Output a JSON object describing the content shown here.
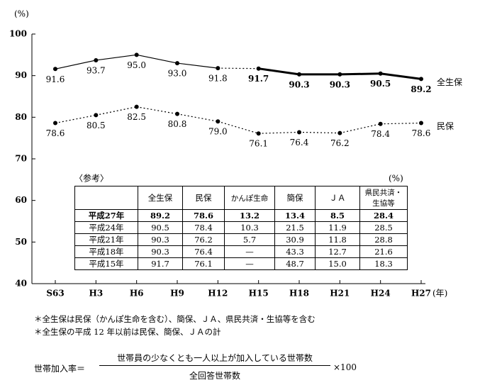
{
  "chart_data": {
    "type": "line",
    "y_unit": "(%)",
    "x_unit": "(年)",
    "categories": [
      "S63",
      "H3",
      "H6",
      "H9",
      "H12",
      "H15",
      "H18",
      "H21",
      "H24",
      "H27"
    ],
    "ylim": [
      40,
      100
    ],
    "yticks": [
      40,
      50,
      60,
      70,
      80,
      90,
      100
    ],
    "color": "#000000",
    "series": [
      {
        "name": "全生保",
        "values": [
          91.6,
          93.7,
          95.0,
          93.0,
          91.8,
          91.7,
          90.3,
          90.3,
          90.5,
          89.2
        ],
        "value_labels": [
          "91.6",
          "93.7",
          "95.0",
          "93.0",
          "91.8",
          "91.7",
          "90.3",
          "90.3",
          "90.5",
          "89.2"
        ],
        "segment_styles": [
          "solid",
          "solid",
          "solid",
          "solid",
          "dotted",
          "thick",
          "thick",
          "thick",
          "thick"
        ]
      },
      {
        "name": "民保",
        "values": [
          78.6,
          80.5,
          82.5,
          80.8,
          79.0,
          76.1,
          76.4,
          76.2,
          78.4,
          78.6
        ],
        "value_labels": [
          "78.6",
          "80.5",
          "82.5",
          "80.8",
          "79.0",
          "76.1",
          "76.4",
          "76.2",
          "78.4",
          "78.6"
        ],
        "segment_styles": [
          "dotted",
          "dotted",
          "dotted",
          "dotted",
          "dotted",
          "dotted",
          "dotted",
          "dotted",
          "dotted"
        ]
      }
    ]
  },
  "reference_table": {
    "title": "〈参考〉",
    "unit": "(%)",
    "header": [
      "全生保",
      "民保",
      "かんぽ生命",
      "簡保",
      "ＪＡ",
      "県民共済・生協等"
    ],
    "rows": [
      [
        "平成27年",
        "89.2",
        "78.6",
        "13.2",
        "13.4",
        "8.5",
        "28.4"
      ],
      [
        "平成24年",
        "90.5",
        "78.4",
        "10.3",
        "21.5",
        "11.9",
        "28.5"
      ],
      [
        "平成21年",
        "90.3",
        "76.2",
        "5.7",
        "30.9",
        "11.8",
        "28.8"
      ],
      [
        "平成18年",
        "90.3",
        "76.4",
        "—",
        "43.3",
        "12.7",
        "21.6"
      ],
      [
        "平成15年",
        "91.7",
        "76.1",
        "—",
        "48.7",
        "15.0",
        "18.3"
      ]
    ]
  },
  "notes": [
    "＊全生保は民保（かんぽ生命を含む）、簡保、ＪＡ、県民共済・生協等を含む",
    "＊全生保の平成 12 年以前は民保、簡保、ＪＡの計"
  ],
  "formula": {
    "lhs": "世帯加入率＝",
    "numerator": "世帯員の少なくとも一人以上が加入している世帯数",
    "denominator": "全回答世帯数",
    "factor": "×100"
  }
}
